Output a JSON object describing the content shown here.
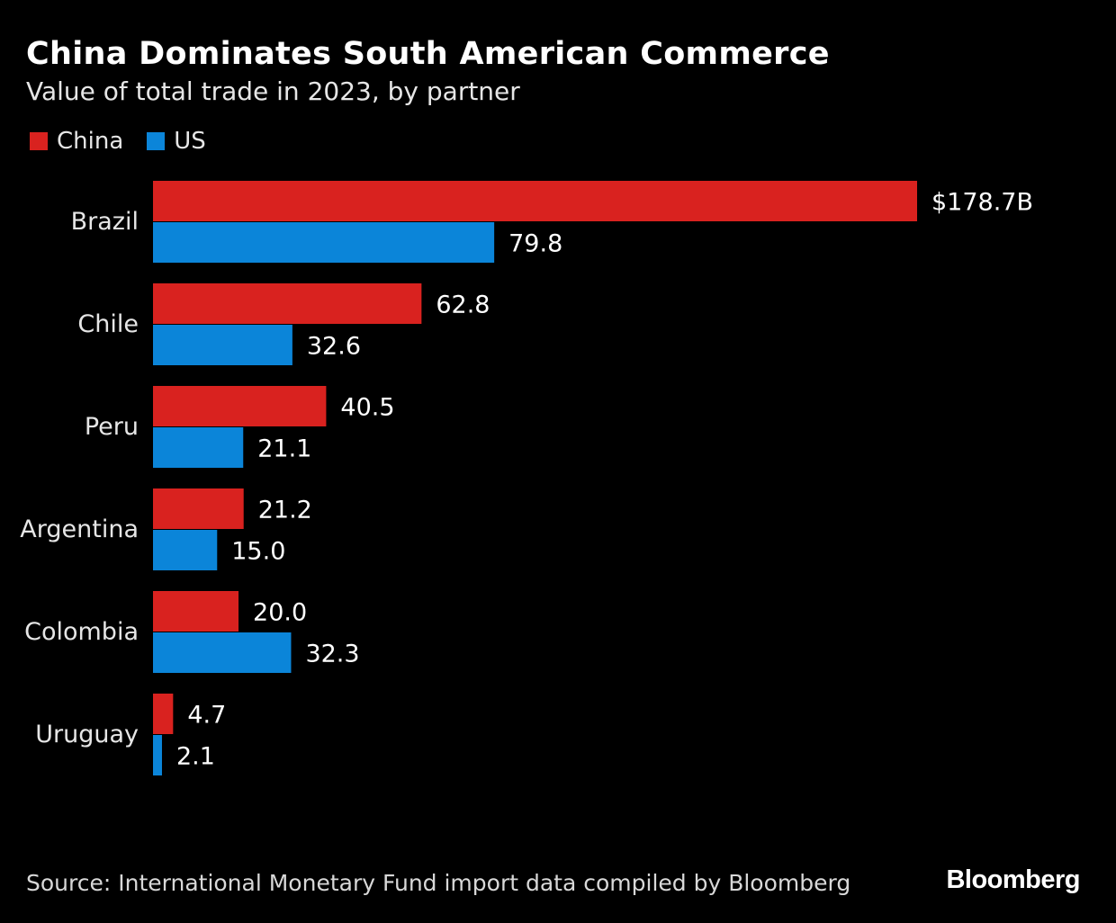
{
  "header": {
    "title": "China Dominates South American Commerce",
    "subtitle": "Value of total trade in 2023, by partner"
  },
  "colors": {
    "china": "#d9221f",
    "us": "#0b85d9",
    "background": "#000000",
    "label": "#e6e6e6"
  },
  "chart_data": {
    "type": "bar",
    "orientation": "horizontal",
    "title": "China Dominates South American Commerce",
    "subtitle": "Value of total trade in 2023, by partner",
    "categories": [
      "Brazil",
      "Chile",
      "Peru",
      "Argentina",
      "Colombia",
      "Uruguay"
    ],
    "series": [
      {
        "name": "China",
        "values": [
          178.7,
          62.8,
          40.5,
          21.2,
          20.0,
          4.7
        ],
        "labels": [
          "$178.7B",
          "62.8",
          "40.5",
          "21.2",
          "20.0",
          "4.7"
        ]
      },
      {
        "name": "US",
        "values": [
          79.8,
          32.6,
          21.1,
          15.0,
          32.3,
          2.1
        ],
        "labels": [
          "79.8",
          "32.6",
          "21.1",
          "15.0",
          "32.3",
          "2.1"
        ]
      }
    ],
    "units": "billion USD",
    "xlim": [
      0,
      178.7
    ],
    "grid": false,
    "legend": "top-left"
  },
  "footer": {
    "source": "Source: International Monetary Fund import data compiled by Bloomberg",
    "brand": "Bloomberg"
  }
}
